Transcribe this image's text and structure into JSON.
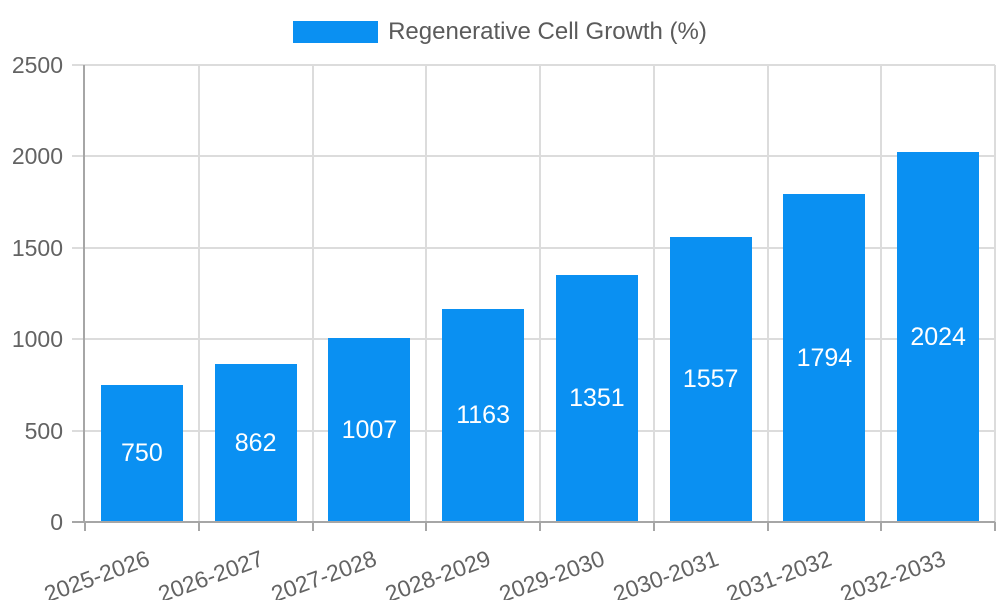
{
  "chart_data": {
    "type": "bar",
    "title": "",
    "legend": {
      "label": "Regenerative Cell Growth (%)",
      "position": "top"
    },
    "categories": [
      "2025-2026",
      "2026-2027",
      "2027-2028",
      "2028-2029",
      "2029-2030",
      "2030-2031",
      "2031-2032",
      "2032-2033"
    ],
    "series": [
      {
        "name": "Regenerative Cell Growth (%)",
        "values": [
          750,
          862,
          1007,
          1163,
          1351,
          1557,
          1794,
          2024
        ]
      }
    ],
    "value_labels_shown": true,
    "xlabel": "",
    "ylabel": "",
    "ylim": [
      0,
      2500
    ],
    "yticks": [
      0,
      500,
      1000,
      1500,
      2000,
      2500
    ],
    "grid": true,
    "x_label_rotation_deg": -20,
    "colors": {
      "bar": "#0a90f2",
      "value_label": "#ffffff",
      "axis_text": "#636363",
      "legend_text": "#5b5b5b",
      "gridline": "#dcdcdc",
      "axis_line": "#a6a6a6",
      "background": "#ffffff"
    }
  }
}
